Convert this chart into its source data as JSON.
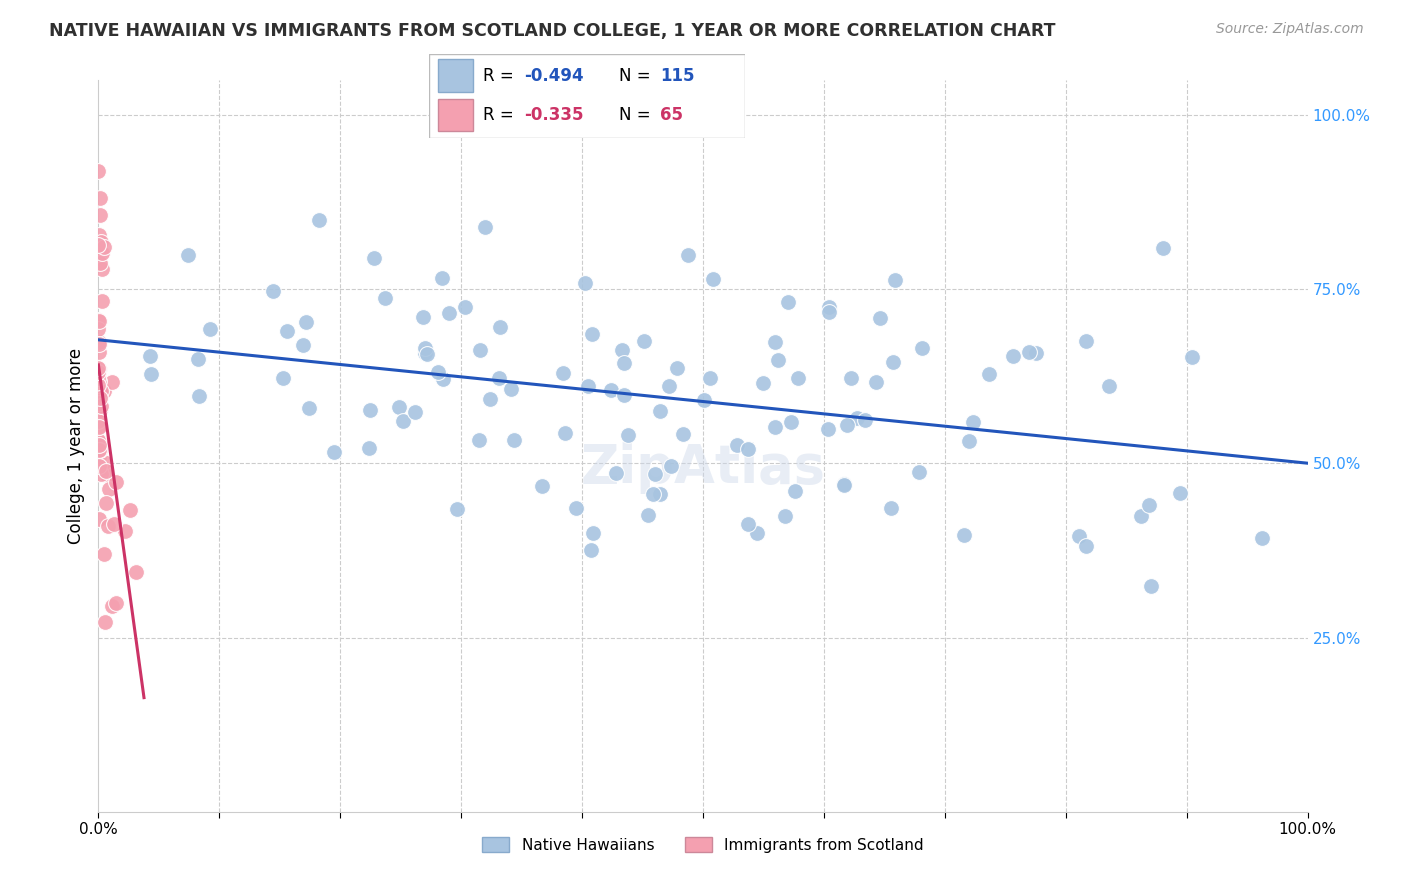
{
  "title": "NATIVE HAWAIIAN VS IMMIGRANTS FROM SCOTLAND COLLEGE, 1 YEAR OR MORE CORRELATION CHART",
  "source": "Source: ZipAtlas.com",
  "ylabel": "College, 1 year or more",
  "right_yticks": [
    "100.0%",
    "75.0%",
    "50.0%",
    "25.0%"
  ],
  "right_ytick_vals": [
    1.0,
    0.75,
    0.5,
    0.25
  ],
  "legend_label1": "Native Hawaiians",
  "legend_label2": "Immigrants from Scotland",
  "R1": -0.494,
  "N1": 115,
  "R2": -0.335,
  "N2": 65,
  "color1": "#a8c4e0",
  "color2": "#f4a0b0",
  "line_color1": "#2255bb",
  "line_color2": "#cc3366",
  "line_color_dashed": "#d0b0c0",
  "background_color": "#ffffff",
  "title_color": "#303030",
  "source_color": "#999999",
  "right_axis_color": "#3399ff",
  "seed1": 42,
  "seed2": 77,
  "xlim": [
    0.0,
    1.0
  ],
  "ylim": [
    0.0,
    1.05
  ]
}
